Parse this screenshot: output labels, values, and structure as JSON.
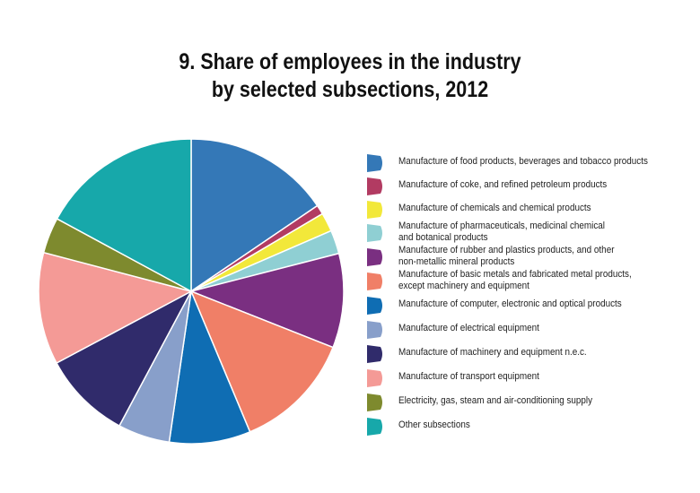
{
  "chart_data": {
    "type": "pie",
    "title": [
      "9. Share of employees in the industry",
      "by selected subsections, 2012"
    ],
    "legend_position": "right",
    "slices": [
      {
        "label": [
          "Manufacture of food products, beverages and tobacco products"
        ],
        "value": 15.5,
        "color": "#3478b7"
      },
      {
        "label": [
          "Manufacture of coke, and refined petroleum products"
        ],
        "value": 1.0,
        "color": "#b23b62"
      },
      {
        "label": [
          "Manufacture of chemicals and chemical products"
        ],
        "value": 2.0,
        "color": "#f2e83a"
      },
      {
        "label": [
          "Manufacture of pharmaceuticals, medicinal chemical",
          "and botanical products"
        ],
        "value": 2.5,
        "color": "#8fcfd3"
      },
      {
        "label": [
          "Manufacture of rubber and plastics products, and other",
          "non-metallic mineral products"
        ],
        "value": 10.0,
        "color": "#7a2f81"
      },
      {
        "label": [
          "Manufacture of basic metals and fabricated metal products,",
          "except machinery and equipment"
        ],
        "value": 12.7,
        "color": "#f07f67"
      },
      {
        "label": [
          "Manufacture of computer, electronic  and optical products"
        ],
        "value": 8.6,
        "color": "#0f6db3"
      },
      {
        "label": [
          "Manufacture of electrical equipment"
        ],
        "value": 5.5,
        "color": "#889fca"
      },
      {
        "label": [
          "Manufacture of machinery and equipment n.e.c."
        ],
        "value": 9.4,
        "color": "#302b6b"
      },
      {
        "label": [
          "Manufacture of transport equipment"
        ],
        "value": 11.9,
        "color": "#f49a96"
      },
      {
        "label": [
          "Electricity, gas, steam and air-conditioning supply"
        ],
        "value": 3.8,
        "color": "#7e8a2e"
      },
      {
        "label": [
          "Other subsections"
        ],
        "value": 17.1,
        "color": "#17a8aa"
      }
    ]
  }
}
